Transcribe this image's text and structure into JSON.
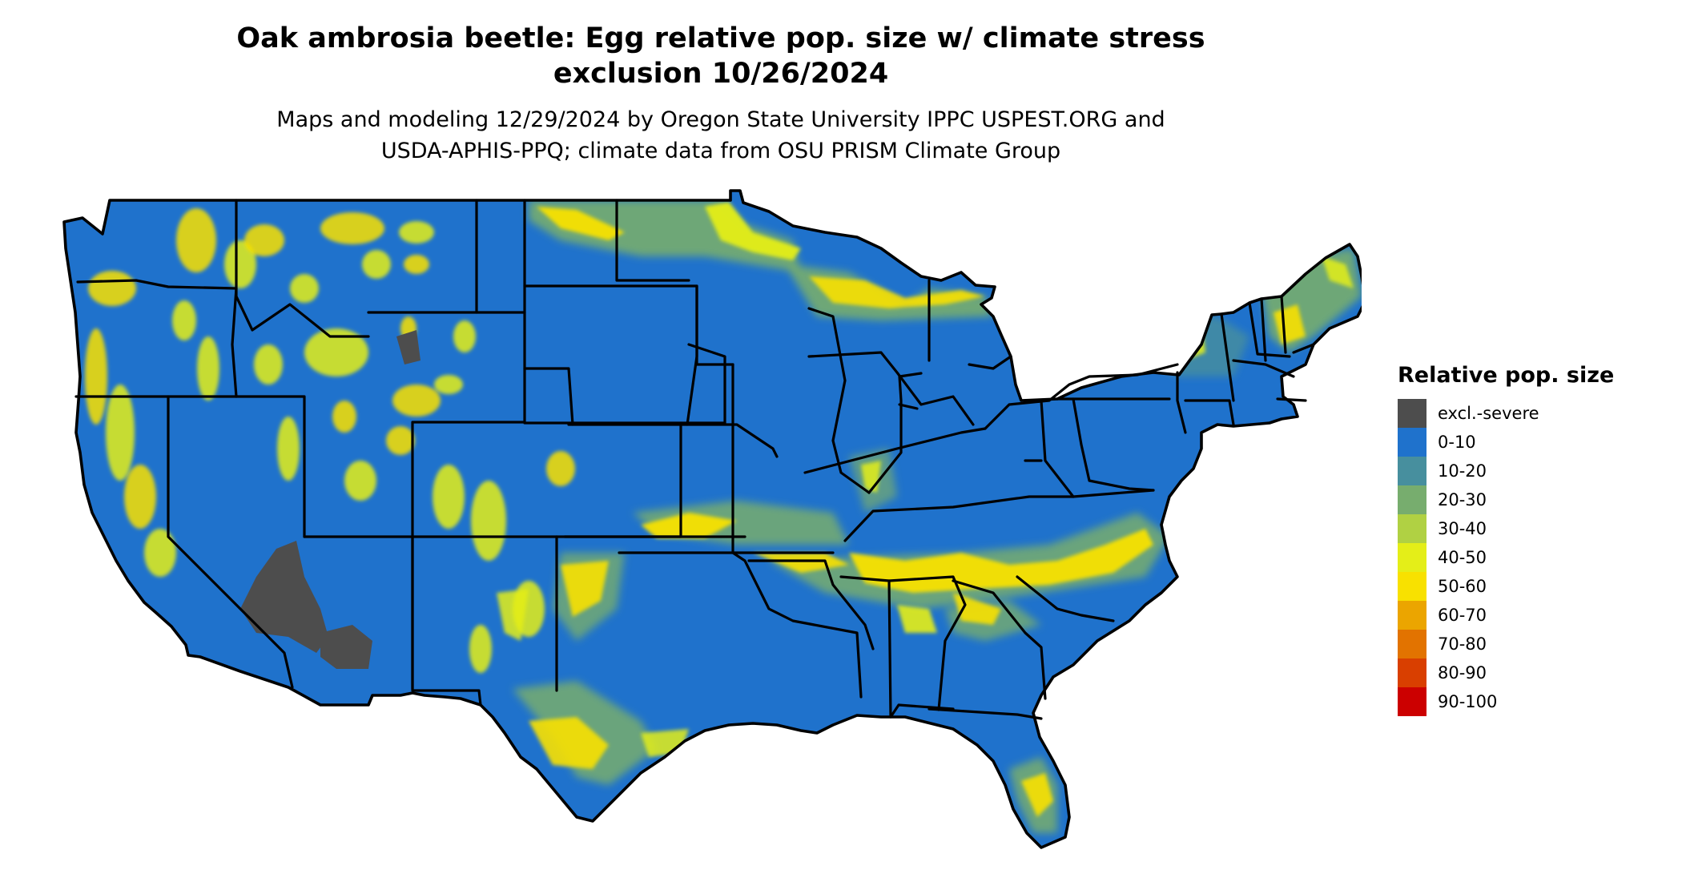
{
  "title": {
    "line1": "Oak ambrosia beetle: Egg relative pop. size w/ climate stress",
    "line2": "exclusion 10/26/2024"
  },
  "subtitle": {
    "line1": "Maps and modeling 12/29/2024 by Oregon State University IPPC USPEST.ORG and",
    "line2": "USDA-APHIS-PPQ; climate data from OSU PRISM Climate Group"
  },
  "map": {
    "region": "contiguous United States",
    "dominant_class": "0-10",
    "colors": {
      "land_base": "#1f72cc",
      "state_border": "#000000"
    }
  },
  "legend": {
    "title": "Relative pop. size",
    "items": [
      {
        "label": "excl.-severe",
        "color": "#4d4d4d"
      },
      {
        "label": "0-10",
        "color": "#1f72cc"
      },
      {
        "label": "10-20",
        "color": "#478f9e"
      },
      {
        "label": "20-30",
        "color": "#77ad6e"
      },
      {
        "label": "30-40",
        "color": "#b0d143"
      },
      {
        "label": "40-50",
        "color": "#e4ee18"
      },
      {
        "label": "50-60",
        "color": "#f8e100"
      },
      {
        "label": "60-70",
        "color": "#eba500"
      },
      {
        "label": "70-80",
        "color": "#e27300"
      },
      {
        "label": "80-90",
        "color": "#d93f00"
      },
      {
        "label": "90-100",
        "color": "#cc0000"
      }
    ]
  }
}
